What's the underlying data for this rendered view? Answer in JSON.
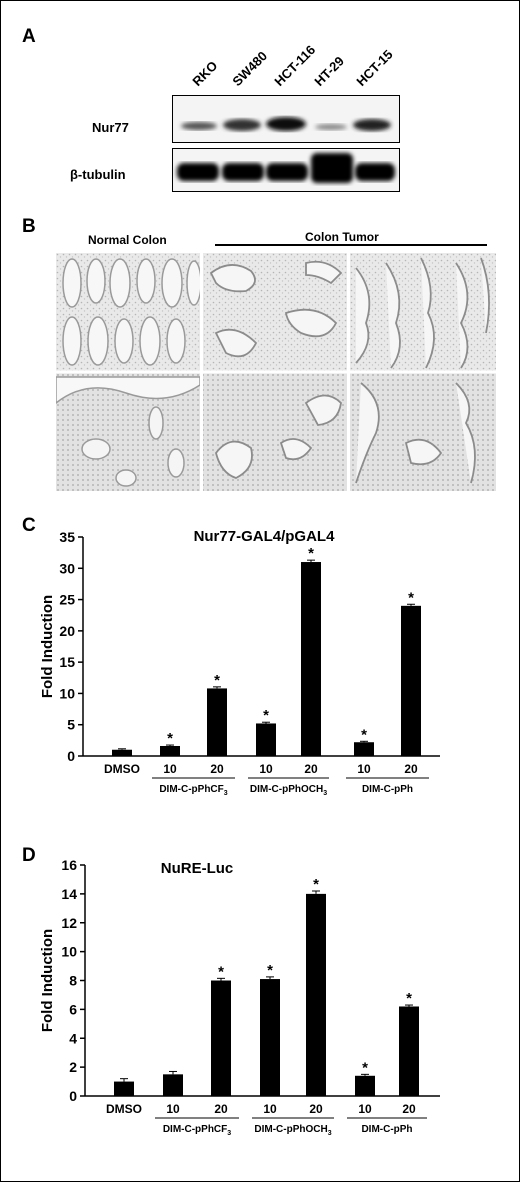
{
  "panels": {
    "a": {
      "letter": "A",
      "lanes": [
        "RKO",
        "SW480",
        "HCT-116",
        "HT-29",
        "HCT-15"
      ],
      "rows": [
        "Nur77",
        "β-tubulin"
      ]
    },
    "b": {
      "letter": "B",
      "normal_label": "Normal Colon",
      "tumor_label": "Colon Tumor"
    },
    "c": {
      "letter": "C"
    },
    "d": {
      "letter": "D"
    }
  },
  "chart_data": [
    {
      "type": "bar",
      "title": "Nur77-GAL4/pGAL4",
      "ylabel": "Fold Induction",
      "ylim": [
        0,
        35
      ],
      "yticks": [
        0,
        5,
        10,
        15,
        20,
        25,
        30,
        35
      ],
      "categories": [
        "DMSO",
        "10",
        "20",
        "10",
        "20",
        "10",
        "20"
      ],
      "groups": [
        "DIM-C-pPhCF3",
        "DIM-C-pPhOCH3",
        "DIM-C-pPh"
      ],
      "values": [
        1.0,
        1.6,
        10.8,
        5.2,
        31.0,
        2.2,
        24.0
      ],
      "errors": [
        0.15,
        0.15,
        0.25,
        0.2,
        0.3,
        0.15,
        0.25
      ],
      "significant": [
        false,
        true,
        true,
        true,
        true,
        true,
        true
      ],
      "marker": "*",
      "bar_color": "#000000"
    },
    {
      "type": "bar",
      "title": "NuRE-Luc",
      "ylabel": "Fold Induction",
      "ylim": [
        0,
        16
      ],
      "yticks": [
        0,
        2,
        4,
        6,
        8,
        10,
        12,
        14,
        16
      ],
      "categories": [
        "DMSO",
        "10",
        "20",
        "10",
        "20",
        "10",
        "20"
      ],
      "groups": [
        "DIM-C-pPhCF3",
        "DIM-C-pPhOCH3",
        "DIM-C-pPh"
      ],
      "values": [
        1.0,
        1.5,
        8.0,
        8.1,
        14.0,
        1.4,
        6.2
      ],
      "errors": [
        0.2,
        0.2,
        0.15,
        0.15,
        0.2,
        0.1,
        0.1
      ],
      "significant": [
        false,
        false,
        true,
        true,
        true,
        true,
        true
      ],
      "marker": "*",
      "bar_color": "#000000"
    }
  ]
}
